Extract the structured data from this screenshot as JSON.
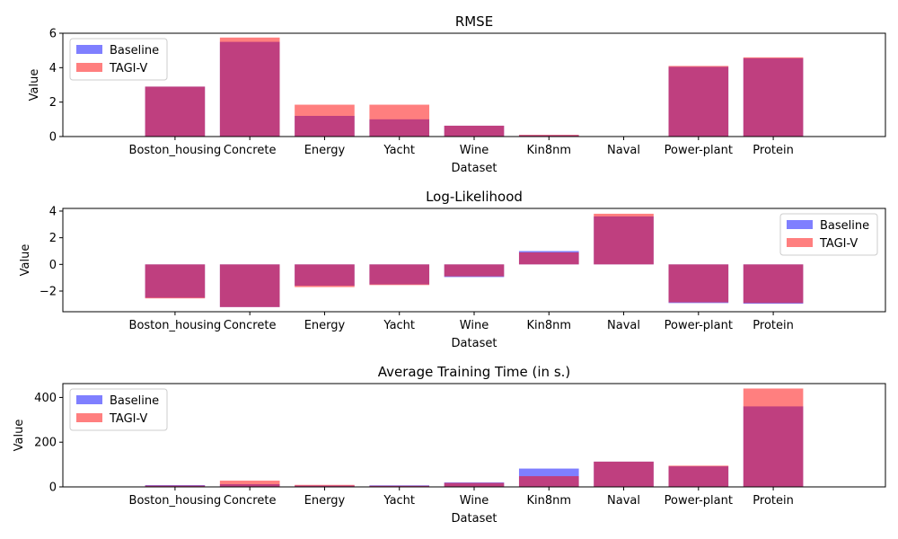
{
  "chart_data": [
    {
      "type": "bar",
      "title": "RMSE",
      "xlabel": "Dataset",
      "ylabel": "Value",
      "ylim": [
        0,
        6
      ],
      "yticks": [
        0,
        2,
        4,
        6
      ],
      "legend": "top-left",
      "categories": [
        "Boston_housing",
        "Concrete",
        "Energy",
        "Yacht",
        "Wine",
        "Kin8nm",
        "Naval",
        "Power-plant",
        "Protein"
      ],
      "series": [
        {
          "name": "Baseline",
          "color": "#0000ff",
          "opacity": 0.5,
          "values": [
            2.9,
            5.5,
            1.2,
            1.0,
            0.63,
            0.08,
            0.02,
            4.05,
            4.55
          ]
        },
        {
          "name": "TAGI-V",
          "color": "#ff0000",
          "opacity": 0.5,
          "values": [
            2.9,
            5.75,
            1.85,
            1.85,
            0.63,
            0.1,
            0.02,
            4.1,
            4.6
          ]
        }
      ]
    },
    {
      "type": "bar",
      "title": "Log-Likelihood",
      "xlabel": "Dataset",
      "ylabel": "Value",
      "ylim": [
        -3.55,
        4.2
      ],
      "yticks": [
        -2,
        0,
        2,
        4
      ],
      "legend": "top-right",
      "categories": [
        "Boston_housing",
        "Concrete",
        "Energy",
        "Yacht",
        "Wine",
        "Kin8nm",
        "Naval",
        "Power-plant",
        "Protein"
      ],
      "series": [
        {
          "name": "Baseline",
          "color": "#0000ff",
          "opacity": 0.5,
          "values": [
            -2.5,
            -3.2,
            -1.6,
            -1.5,
            -0.95,
            1.0,
            3.6,
            -2.9,
            -2.95
          ]
        },
        {
          "name": "TAGI-V",
          "color": "#ff0000",
          "opacity": 0.5,
          "values": [
            -2.55,
            -3.2,
            -1.7,
            -1.55,
            -0.9,
            0.9,
            3.8,
            -2.85,
            -2.9
          ]
        }
      ]
    },
    {
      "type": "bar",
      "title": "Average Training Time (in s.)",
      "xlabel": "Dataset",
      "ylabel": "Value",
      "ylim": [
        0,
        462
      ],
      "yticks": [
        0,
        200,
        400
      ],
      "legend": "top-left",
      "categories": [
        "Boston_housing",
        "Concrete",
        "Energy",
        "Yacht",
        "Wine",
        "Kin8nm",
        "Naval",
        "Power-plant",
        "Protein"
      ],
      "series": [
        {
          "name": "Baseline",
          "color": "#0000ff",
          "opacity": 0.5,
          "values": [
            8,
            12,
            6,
            7,
            20,
            82,
            113,
            92,
            360
          ]
        },
        {
          "name": "TAGI-V",
          "color": "#ff0000",
          "opacity": 0.5,
          "values": [
            6,
            28,
            9,
            5,
            18,
            48,
            113,
            95,
            440
          ]
        }
      ]
    }
  ]
}
